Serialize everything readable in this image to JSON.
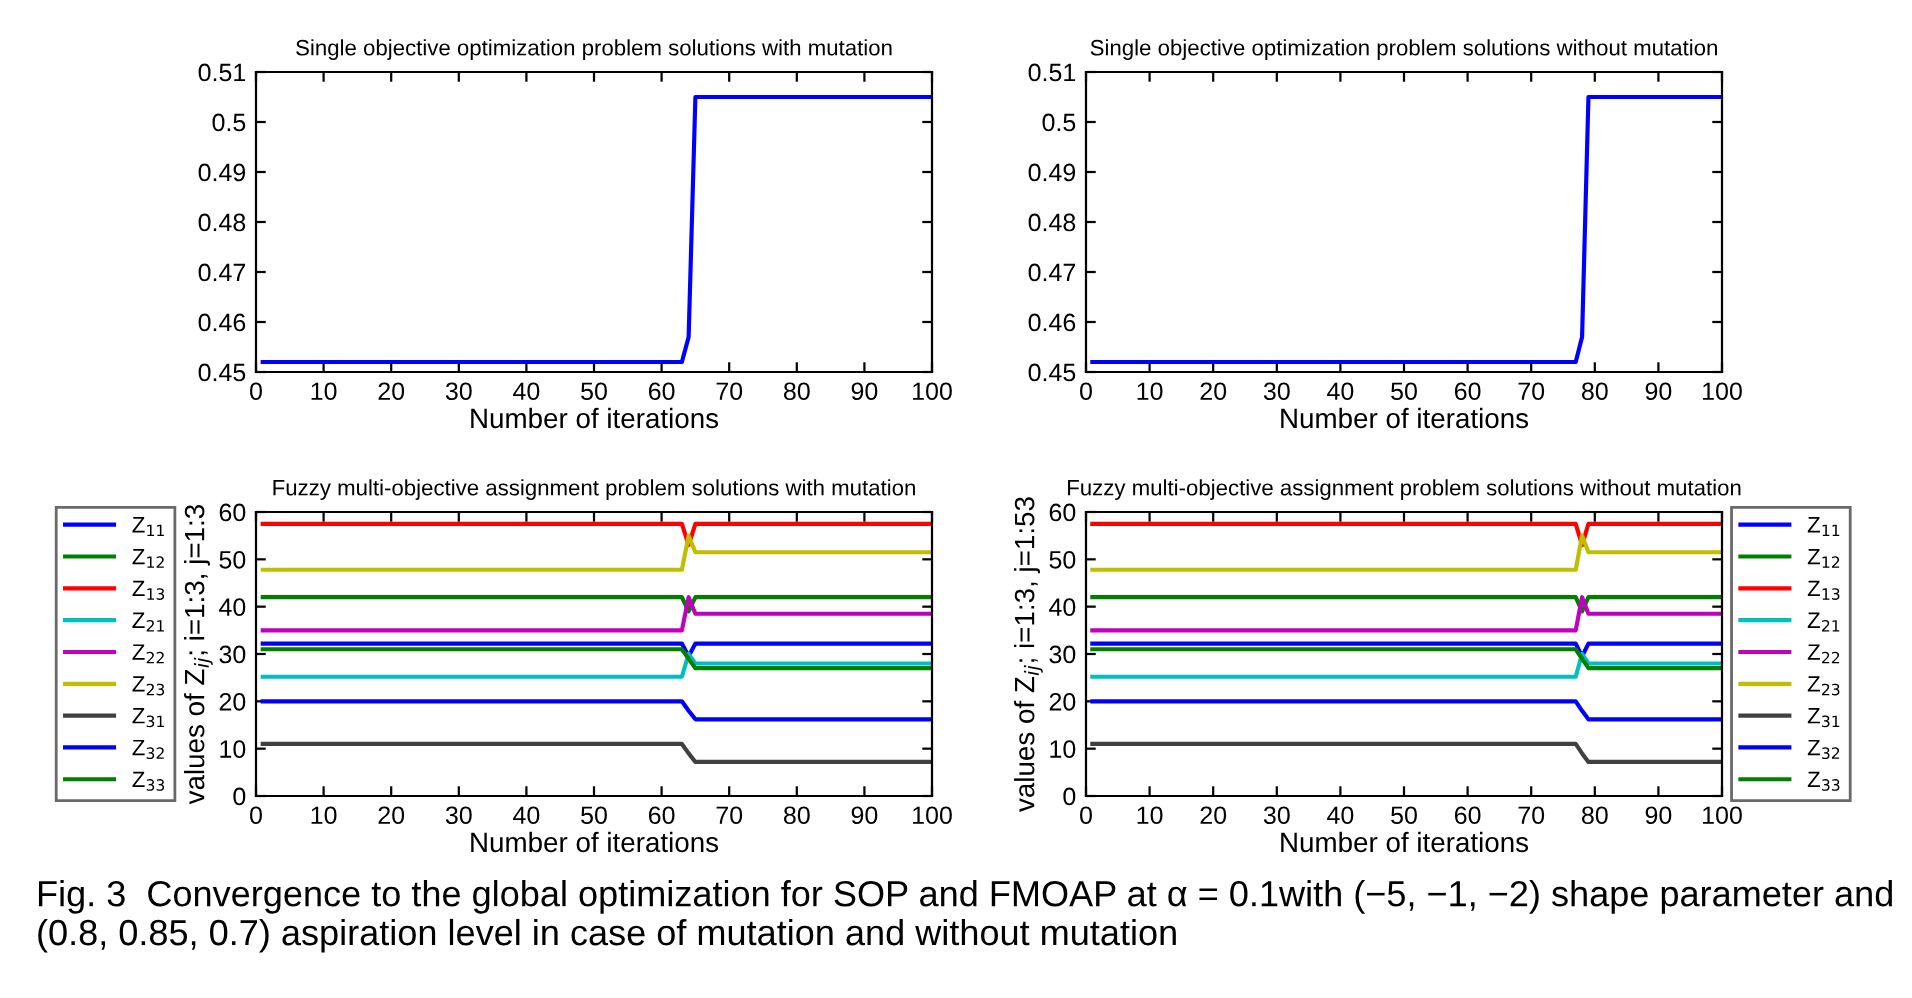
{
  "chart_data": [
    {
      "type": "line",
      "title": "Single objective optimization problem solutions with mutation",
      "xlabel": "Number of iterations",
      "x": [
        1,
        63,
        64,
        65,
        100
      ],
      "series": [
        {
          "color": "#0000ff",
          "values": [
            0.452,
            0.452,
            0.457,
            0.505,
            0.505
          ]
        }
      ],
      "xlim": [
        0,
        100
      ],
      "xticks": [
        0,
        10,
        20,
        30,
        40,
        50,
        60,
        70,
        80,
        90,
        100
      ],
      "ylim": [
        0.45,
        0.51
      ],
      "yticks": [
        0.45,
        0.46,
        0.47,
        0.48,
        0.49,
        0.5,
        0.51
      ],
      "grid": false,
      "legend": false
    },
    {
      "type": "line",
      "title": "Single objective optimization problem solutions without mutation",
      "xlabel": "Number of iterations",
      "x": [
        1,
        77,
        78,
        79,
        100
      ],
      "series": [
        {
          "color": "#0000ff",
          "values": [
            0.452,
            0.452,
            0.457,
            0.505,
            0.505
          ]
        }
      ],
      "xlim": [
        0,
        100
      ],
      "xticks": [
        0,
        10,
        20,
        30,
        40,
        50,
        60,
        70,
        80,
        90,
        100
      ],
      "ylim": [
        0.45,
        0.51
      ],
      "yticks": [
        0.45,
        0.46,
        0.47,
        0.48,
        0.49,
        0.5,
        0.51
      ],
      "grid": false,
      "legend": false
    },
    {
      "type": "line",
      "title": "Fuzzy multi-objective assignment problem solutions with mutation",
      "xlabel": "Number of iterations",
      "ylabel": "values of Z$_{ij}$; i=1:3, j=1:3",
      "x": [
        1,
        63,
        64,
        65,
        100
      ],
      "series": [
        {
          "name": "Z$_{11}$",
          "color": "#0000ff",
          "values": [
            32.2,
            32.2,
            29.5,
            32.2,
            32.2
          ]
        },
        {
          "name": "Z$_{12}$",
          "color": "#008000",
          "values": [
            42,
            42,
            39,
            42,
            42
          ]
        },
        {
          "name": "Z$_{13}$",
          "color": "#ff0000",
          "values": [
            57.5,
            57.5,
            53,
            57.5,
            57.5
          ]
        },
        {
          "name": "Z$_{21}$",
          "color": "#00bfbf",
          "values": [
            25.2,
            25.2,
            30,
            28,
            28
          ]
        },
        {
          "name": "Z$_{22}$",
          "color": "#bf00bf",
          "values": [
            35,
            35,
            42,
            38.5,
            38.5
          ]
        },
        {
          "name": "Z$_{23}$",
          "color": "#bfbf00",
          "values": [
            47.8,
            47.8,
            55,
            51.5,
            51.5
          ]
        },
        {
          "name": "Z$_{31}$",
          "color": "#404040",
          "values": [
            11,
            11,
            9,
            7.2,
            7.2
          ]
        },
        {
          "name": "Z$_{32}$",
          "color": "#0000ff",
          "values": [
            20,
            20,
            18,
            16.2,
            16.2
          ]
        },
        {
          "name": "Z$_{33}$",
          "color": "#008000",
          "values": [
            31,
            31,
            29,
            27,
            27
          ]
        }
      ],
      "xlim": [
        0,
        100
      ],
      "xticks": [
        0,
        10,
        20,
        30,
        40,
        50,
        60,
        70,
        80,
        90,
        100
      ],
      "ylim": [
        0,
        60
      ],
      "yticks": [
        0,
        10,
        20,
        30,
        40,
        50,
        60
      ],
      "grid": false,
      "legend": "left"
    },
    {
      "type": "line",
      "title": "Fuzzy multi-objective assignment problem solutions without mutation",
      "xlabel": "Number of iterations",
      "ylabel": "values of Z$_{ij}$; i=1:3, j=1:53",
      "x": [
        1,
        77,
        78,
        79,
        100
      ],
      "series": [
        {
          "name": "Z$_{11}$",
          "color": "#0000ff",
          "values": [
            32.2,
            32.2,
            29.5,
            32.2,
            32.2
          ]
        },
        {
          "name": "Z$_{12}$",
          "color": "#008000",
          "values": [
            42,
            42,
            39,
            42,
            42
          ]
        },
        {
          "name": "Z$_{13}$",
          "color": "#ff0000",
          "values": [
            57.5,
            57.5,
            53,
            57.5,
            57.5
          ]
        },
        {
          "name": "Z$_{21}$",
          "color": "#00bfbf",
          "values": [
            25.2,
            25.2,
            30,
            28,
            28
          ]
        },
        {
          "name": "Z$_{22}$",
          "color": "#bf00bf",
          "values": [
            35,
            35,
            42,
            38.5,
            38.5
          ]
        },
        {
          "name": "Z$_{23}$",
          "color": "#bfbf00",
          "values": [
            47.8,
            47.8,
            55,
            51.5,
            51.5
          ]
        },
        {
          "name": "Z$_{31}$",
          "color": "#404040",
          "values": [
            11,
            11,
            9,
            7.2,
            7.2
          ]
        },
        {
          "name": "Z$_{32}$",
          "color": "#0000ff",
          "values": [
            20,
            20,
            18,
            16.2,
            16.2
          ]
        },
        {
          "name": "Z$_{33}$",
          "color": "#008000",
          "values": [
            31,
            31,
            29,
            27,
            27
          ]
        }
      ],
      "xlim": [
        0,
        100
      ],
      "xticks": [
        0,
        10,
        20,
        30,
        40,
        50,
        60,
        70,
        80,
        90,
        100
      ],
      "ylim": [
        0,
        60
      ],
      "yticks": [
        0,
        10,
        20,
        30,
        40,
        50,
        60
      ],
      "grid": false,
      "legend": "right",
      "annotations": [
        "Fig. 3  Convergence to the global optimization for SOP and FMOAP at α = 0.1with (−5, −1, −2) shape parameter and (0.8, 0.85, 0.7) aspiration level in case of mutation and without mutation"
      ]
    }
  ]
}
